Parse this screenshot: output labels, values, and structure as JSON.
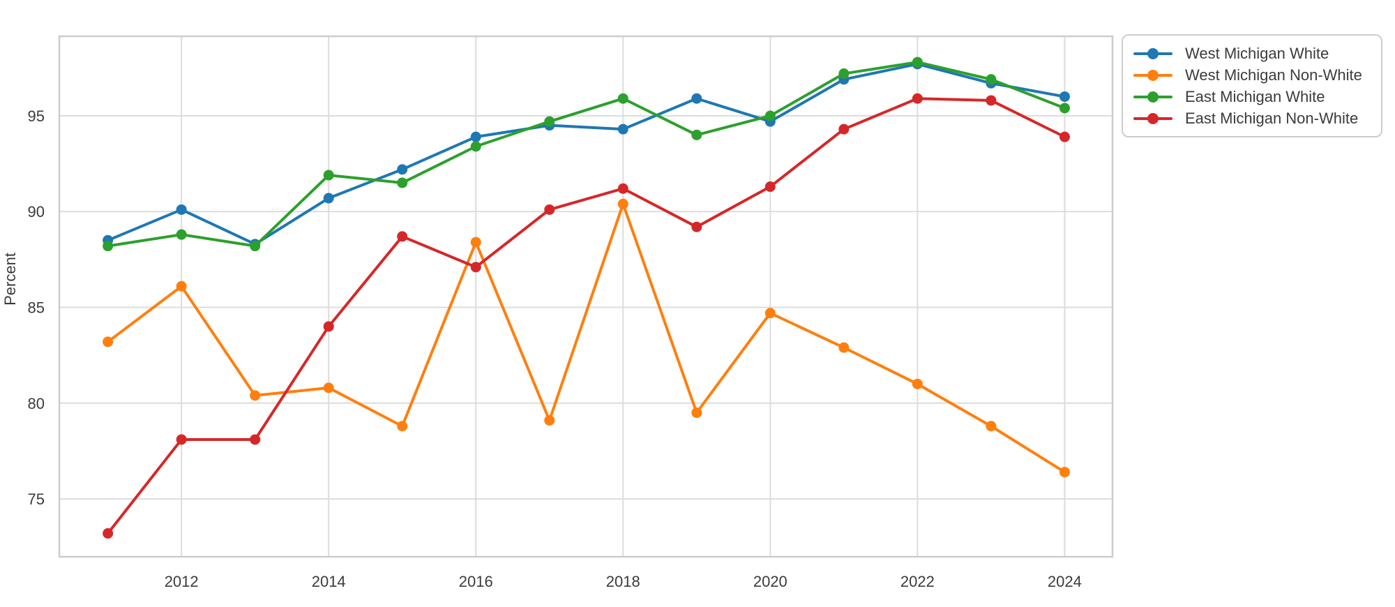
{
  "chart_data": {
    "type": "line",
    "title": "",
    "xlabel": "",
    "ylabel": "Percent",
    "x": [
      2011,
      2012,
      2013,
      2014,
      2015,
      2016,
      2017,
      2018,
      2019,
      2020,
      2021,
      2022,
      2023,
      2024
    ],
    "series": [
      {
        "name": "West Michigan White",
        "color": "#1f77b4",
        "values": [
          88.5,
          90.1,
          88.3,
          90.7,
          92.2,
          93.9,
          94.5,
          94.3,
          95.9,
          94.7,
          96.9,
          97.7,
          96.7,
          96.0
        ]
      },
      {
        "name": "West Michigan Non-White",
        "color": "#ff7f0e",
        "values": [
          83.2,
          86.1,
          80.4,
          80.8,
          78.8,
          88.4,
          79.1,
          90.4,
          79.5,
          84.7,
          82.9,
          81.0,
          78.8,
          76.4
        ]
      },
      {
        "name": "East Michigan White",
        "color": "#2ca02c",
        "values": [
          88.2,
          88.8,
          88.2,
          91.9,
          91.5,
          93.4,
          94.7,
          95.9,
          94.0,
          95.0,
          97.2,
          97.8,
          96.9,
          95.4
        ]
      },
      {
        "name": "East Michigan Non-White",
        "color": "#d62728",
        "values": [
          73.2,
          78.1,
          78.1,
          84.0,
          88.7,
          87.1,
          90.1,
          91.2,
          89.2,
          91.3,
          94.3,
          95.9,
          95.8,
          93.9
        ]
      }
    ],
    "xticks": [
      2012,
      2014,
      2016,
      2018,
      2020,
      2022,
      2024
    ],
    "yticks": [
      75,
      80,
      85,
      90,
      95
    ],
    "xlim": [
      2010.34,
      2024.65
    ],
    "ylim": [
      71.98,
      99.15
    ],
    "grid": true,
    "legend_position": "outside upper right",
    "style": {
      "grid_color": "#dcdcdc",
      "axes_border_color": "#cccccc",
      "tick_label_color": "#3b3b3b",
      "background_color": "#ffffff"
    }
  }
}
